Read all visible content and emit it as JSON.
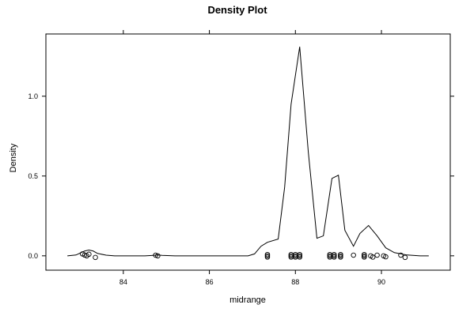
{
  "chart_data": {
    "type": "line",
    "title": "Density Plot",
    "xlabel": "midrange",
    "ylabel": "Density",
    "xlim": [
      82.2,
      91.6
    ],
    "ylim": [
      -0.09,
      1.39
    ],
    "x_ticks": [
      84,
      86,
      88,
      90
    ],
    "x_tick_labels": [
      "84",
      "86",
      "88",
      "90"
    ],
    "y_ticks": [
      0.0,
      0.5,
      1.0
    ],
    "y_tick_labels": [
      "0.0",
      "0.5",
      "1.0"
    ],
    "grid": false,
    "legend": "none",
    "series": [
      {
        "kind": "line",
        "points": [
          [
            82.7,
            0.0
          ],
          [
            82.9,
            0.005
          ],
          [
            83.0,
            0.018
          ],
          [
            83.1,
            0.03
          ],
          [
            83.2,
            0.036
          ],
          [
            83.3,
            0.03
          ],
          [
            83.4,
            0.015
          ],
          [
            83.6,
            0.004
          ],
          [
            83.8,
            0.0
          ],
          [
            84.5,
            0.0
          ],
          [
            84.7,
            0.003
          ],
          [
            84.8,
            0.005
          ],
          [
            84.9,
            0.003
          ],
          [
            85.2,
            0.0
          ],
          [
            86.9,
            0.0
          ],
          [
            87.05,
            0.012
          ],
          [
            87.2,
            0.06
          ],
          [
            87.35,
            0.085
          ],
          [
            87.6,
            0.105
          ],
          [
            87.75,
            0.43
          ],
          [
            87.9,
            0.95
          ],
          [
            88.1,
            1.31
          ],
          [
            88.3,
            0.65
          ],
          [
            88.5,
            0.11
          ],
          [
            88.65,
            0.125
          ],
          [
            88.85,
            0.485
          ],
          [
            89.0,
            0.505
          ],
          [
            89.15,
            0.16
          ],
          [
            89.35,
            0.06
          ],
          [
            89.5,
            0.14
          ],
          [
            89.7,
            0.19
          ],
          [
            89.9,
            0.125
          ],
          [
            90.1,
            0.05
          ],
          [
            90.3,
            0.02
          ],
          [
            90.6,
            0.005
          ],
          [
            90.9,
            0.0
          ],
          [
            91.1,
            0.0
          ]
        ]
      },
      {
        "kind": "rug",
        "points": [
          [
            83.1,
            0.005
          ],
          [
            83.15,
            0.0
          ],
          [
            83.2,
            0.01
          ],
          [
            83.05,
            0.012
          ],
          [
            83.35,
            -0.01
          ],
          [
            84.75,
            0.004
          ],
          [
            84.8,
            0.0
          ],
          [
            87.35,
            0.0
          ],
          [
            87.35,
            0.008
          ],
          [
            87.35,
            -0.008
          ],
          [
            87.9,
            0.0
          ],
          [
            87.9,
            0.008
          ],
          [
            87.9,
            -0.008
          ],
          [
            88.0,
            0.0
          ],
          [
            88.0,
            0.008
          ],
          [
            88.0,
            -0.008
          ],
          [
            88.1,
            0.0
          ],
          [
            88.1,
            0.008
          ],
          [
            88.1,
            -0.008
          ],
          [
            88.8,
            0.0
          ],
          [
            88.8,
            0.008
          ],
          [
            88.8,
            -0.008
          ],
          [
            88.9,
            0.0
          ],
          [
            88.9,
            0.008
          ],
          [
            88.9,
            -0.008
          ],
          [
            89.05,
            0.0
          ],
          [
            89.05,
            0.008
          ],
          [
            89.05,
            -0.008
          ],
          [
            89.35,
            0.004
          ],
          [
            89.6,
            0.0
          ],
          [
            89.6,
            0.008
          ],
          [
            89.6,
            -0.008
          ],
          [
            89.75,
            0.0
          ],
          [
            89.8,
            -0.008
          ],
          [
            89.9,
            0.004
          ],
          [
            90.05,
            0.0
          ],
          [
            90.1,
            -0.006
          ],
          [
            90.45,
            0.004
          ],
          [
            90.55,
            -0.01
          ]
        ]
      }
    ]
  }
}
